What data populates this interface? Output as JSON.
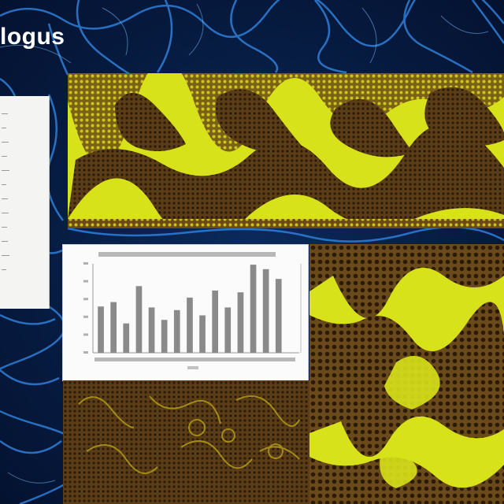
{
  "slide": {
    "title": "logus",
    "colors": {
      "background": "#06183a",
      "network_lines": "#2f7fd8",
      "yellow": "#d8e21a",
      "brown": "#5a3d16",
      "chart_bars": "#8a8a8a"
    }
  },
  "chart_data": {
    "type": "bar",
    "title": "",
    "xlabel": "",
    "ylabel": "",
    "categories": [
      "",
      "",
      "",
      "",
      "",
      "",
      "",
      "",
      "",
      "",
      "",
      "",
      "",
      "",
      "",
      ""
    ],
    "values": [
      5.2,
      5.7,
      3.3,
      7.5,
      5.1,
      3.7,
      4.8,
      6.2,
      4.2,
      7.0,
      5.1,
      6.8,
      9.9,
      9.4,
      8.3,
      0
    ],
    "ylim": [
      0,
      10
    ],
    "grid": false
  }
}
